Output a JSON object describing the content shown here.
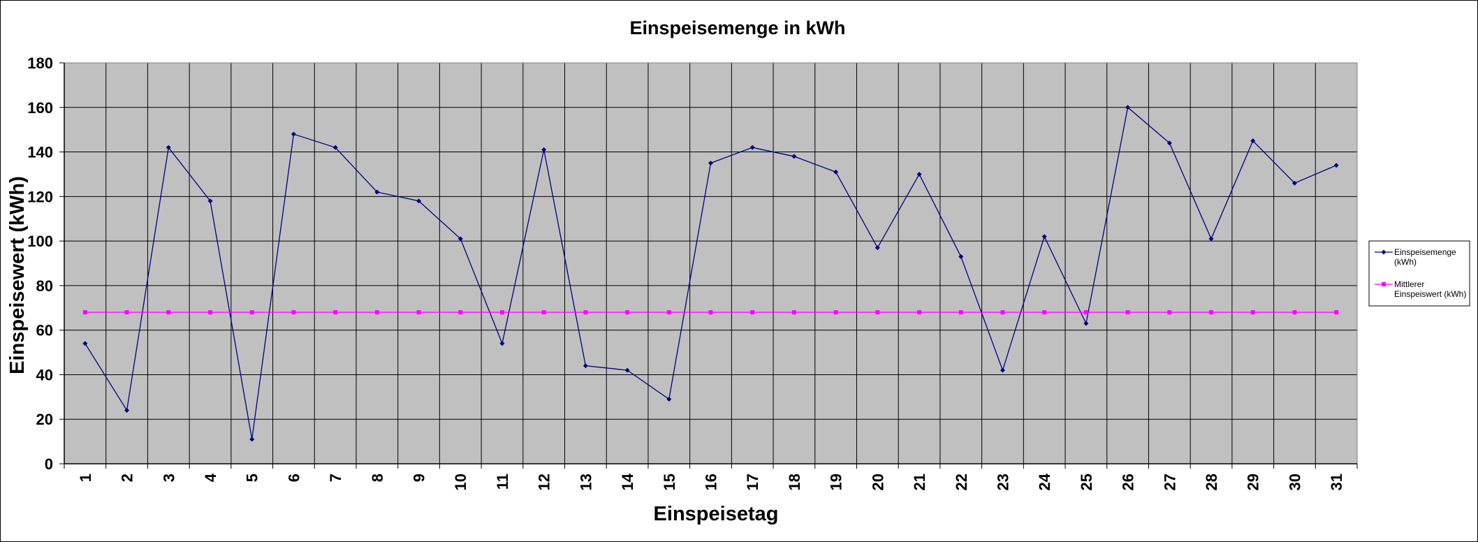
{
  "chart_data": {
    "type": "line",
    "title": "Einspeisemenge in kWh",
    "xlabel": "Einspeisetag",
    "ylabel": "Einspeisewert  (kWh)",
    "x": [
      1,
      2,
      3,
      4,
      5,
      6,
      7,
      8,
      9,
      10,
      11,
      12,
      13,
      14,
      15,
      16,
      17,
      18,
      19,
      20,
      21,
      22,
      23,
      24,
      25,
      26,
      27,
      28,
      29,
      30,
      31
    ],
    "ylim": [
      0,
      180
    ],
    "yticks": [
      0,
      20,
      40,
      60,
      80,
      100,
      120,
      140,
      160,
      180
    ],
    "grid": true,
    "legend_position": "right",
    "series": [
      {
        "name": "Einspeisemenge (kWh)",
        "legend_lines": [
          "Einspeisemenge",
          "(kWh)"
        ],
        "color": "#000080",
        "marker": "diamond",
        "values": [
          54,
          24,
          142,
          118,
          11,
          148,
          142,
          122,
          118,
          101,
          54,
          141,
          44,
          42,
          29,
          135,
          142,
          138,
          131,
          97,
          130,
          93,
          42,
          102,
          63,
          160,
          144,
          101,
          145,
          126,
          134
        ]
      },
      {
        "name": "Mittlerer Einspeiswert (kWh)",
        "legend_lines": [
          "Mittlerer",
          "Einspeiswert (kWh)"
        ],
        "color": "#ff00ff",
        "marker": "square",
        "values": [
          68,
          68,
          68,
          68,
          68,
          68,
          68,
          68,
          68,
          68,
          68,
          68,
          68,
          68,
          68,
          68,
          68,
          68,
          68,
          68,
          68,
          68,
          68,
          68,
          68,
          68,
          68,
          68,
          68,
          68,
          68
        ]
      }
    ]
  },
  "colors": {
    "plot_background": "#c0c0c0",
    "gridline": "#000000"
  }
}
